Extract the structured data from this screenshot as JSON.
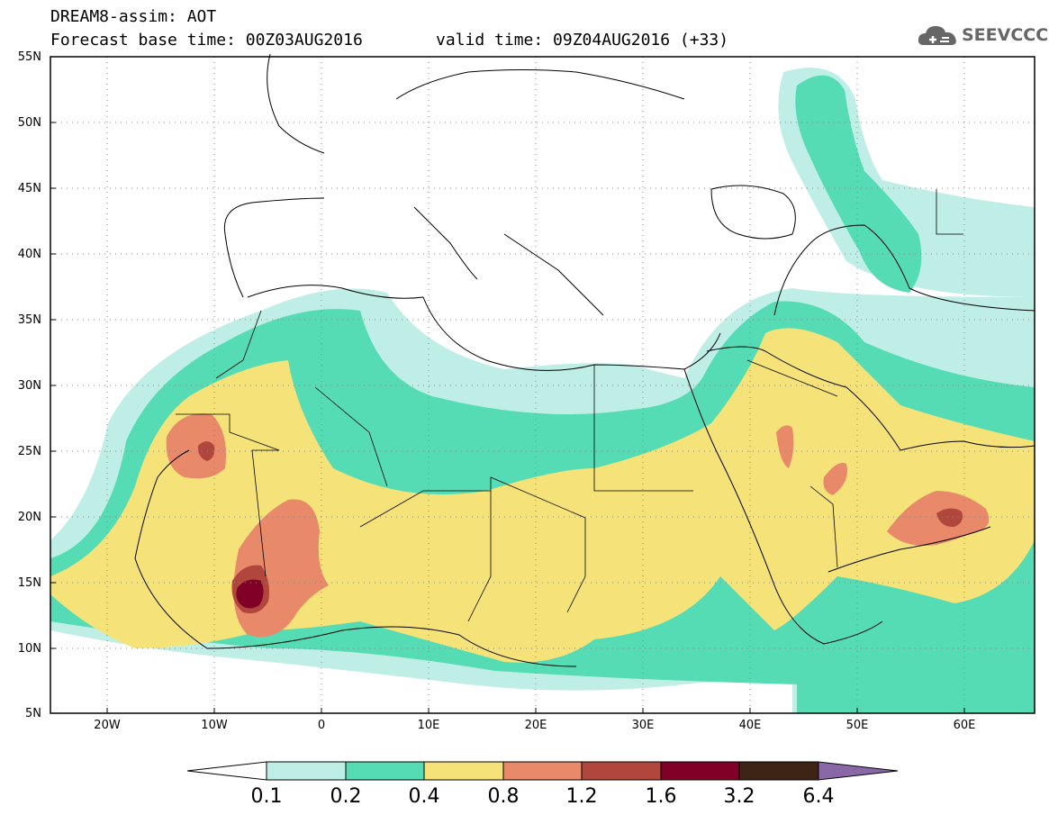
{
  "header": {
    "title_line1": "DREAM8-assim: AOT",
    "title_line2": "Forecast base time: 00Z03AUG2016",
    "valid_time": "valid time: 09Z04AUG2016 (+33)"
  },
  "logo": {
    "text": "SEEVCCC",
    "icon": "cloud-icon"
  },
  "axes": {
    "lat_labels": [
      "55N",
      "50N",
      "45N",
      "40N",
      "35N",
      "30N",
      "25N",
      "20N",
      "15N",
      "10N",
      "5N"
    ],
    "lon_labels": [
      "20W",
      "10W",
      "0",
      "10E",
      "20E",
      "30E",
      "40E",
      "50E",
      "60E"
    ]
  },
  "colorbar": {
    "labels": [
      "0.1",
      "0.2",
      "0.4",
      "0.8",
      "1.2",
      "1.6",
      "3.2",
      "6.4"
    ],
    "colors": [
      "#ffffff",
      "#bfeee7",
      "#55dcb4",
      "#f5e37a",
      "#e8896a",
      "#b1473c",
      "#800028",
      "#3e2415",
      "#8a68a8"
    ]
  },
  "legend_colors": {
    "c1": "#bfeee7",
    "c2": "#55dcb4",
    "c3": "#f5e37a",
    "c4": "#e8896a",
    "c5": "#b1473c",
    "c6": "#800028"
  }
}
